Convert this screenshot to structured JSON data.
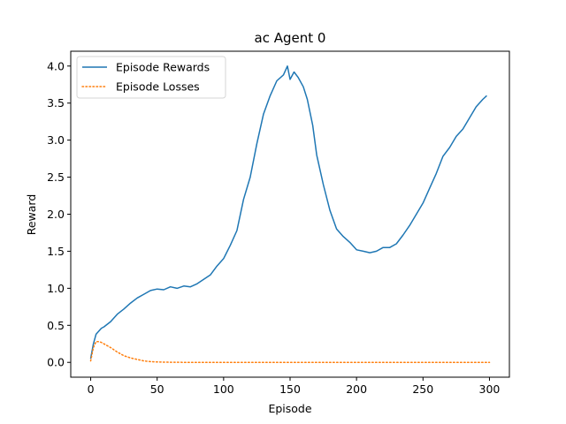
{
  "chart_data": {
    "type": "line",
    "title": "ac Agent 0",
    "xlabel": "Episode",
    "ylabel": "Reward",
    "xlim": [
      -15,
      315
    ],
    "ylim": [
      -0.2,
      4.2
    ],
    "xticks": [
      0,
      50,
      100,
      150,
      200,
      250,
      300
    ],
    "yticks": [
      0.0,
      0.5,
      1.0,
      1.5,
      2.0,
      2.5,
      3.0,
      3.5,
      4.0
    ],
    "ytick_labels": [
      "0.0",
      "0.5",
      "1.0",
      "1.5",
      "2.0",
      "2.5",
      "3.0",
      "3.5",
      "4.0"
    ],
    "grid": false,
    "legend_position": "upper-left",
    "series": [
      {
        "name": "Episode Rewards",
        "color": "#1f77b4",
        "style": "solid",
        "x": [
          0,
          2,
          4,
          6,
          8,
          10,
          15,
          20,
          25,
          30,
          35,
          40,
          45,
          50,
          55,
          60,
          65,
          70,
          75,
          80,
          85,
          90,
          95,
          100,
          105,
          110,
          115,
          120,
          125,
          130,
          135,
          140,
          145,
          148,
          150,
          153,
          156,
          160,
          163,
          167,
          170,
          175,
          180,
          185,
          190,
          195,
          200,
          205,
          210,
          215,
          220,
          225,
          230,
          235,
          240,
          245,
          250,
          255,
          260,
          265,
          270,
          275,
          280,
          285,
          290,
          295,
          298
        ],
        "values": [
          0.05,
          0.25,
          0.38,
          0.42,
          0.46,
          0.48,
          0.55,
          0.65,
          0.72,
          0.8,
          0.87,
          0.92,
          0.97,
          0.99,
          0.98,
          1.02,
          1.0,
          1.03,
          1.02,
          1.06,
          1.12,
          1.18,
          1.3,
          1.4,
          1.58,
          1.78,
          2.2,
          2.5,
          2.95,
          3.35,
          3.6,
          3.8,
          3.88,
          4.0,
          3.82,
          3.92,
          3.85,
          3.72,
          3.55,
          3.2,
          2.8,
          2.4,
          2.05,
          1.8,
          1.7,
          1.62,
          1.52,
          1.5,
          1.48,
          1.5,
          1.55,
          1.55,
          1.6,
          1.72,
          1.85,
          2.0,
          2.15,
          2.35,
          2.55,
          2.78,
          2.9,
          3.05,
          3.15,
          3.3,
          3.45,
          3.55,
          3.6
        ]
      },
      {
        "name": "Episode Losses",
        "color": "#ff7f0e",
        "style": "dotted",
        "x": [
          0,
          2,
          4,
          6,
          8,
          10,
          15,
          20,
          25,
          30,
          35,
          40,
          45,
          50,
          60,
          70,
          80,
          100,
          150,
          200,
          250,
          300
        ],
        "values": [
          0.02,
          0.2,
          0.28,
          0.28,
          0.27,
          0.25,
          0.2,
          0.14,
          0.09,
          0.06,
          0.04,
          0.02,
          0.01,
          0.005,
          0.002,
          0.0,
          0.0,
          0.0,
          0.0,
          0.0,
          0.0,
          0.0
        ]
      }
    ]
  }
}
